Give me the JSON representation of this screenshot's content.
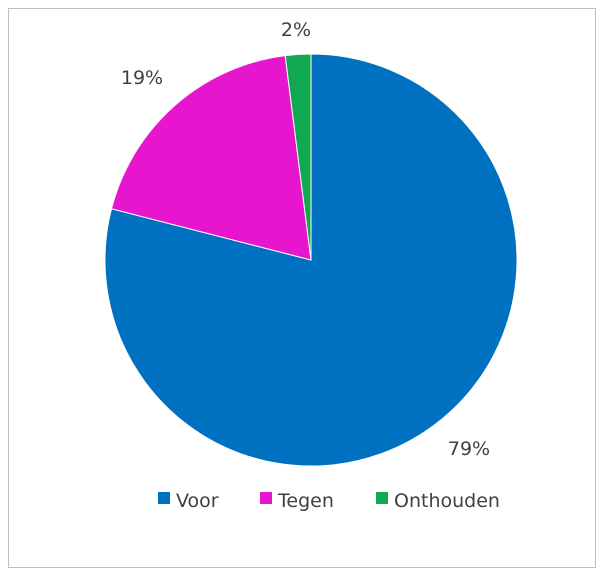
{
  "header_fragment": "",
  "chart_data": {
    "type": "pie",
    "title": "",
    "categories": [
      "Voor",
      "Tegen",
      "Onthouden"
    ],
    "values": [
      79,
      19,
      2
    ],
    "labels": [
      "79%",
      "19%",
      "2%"
    ],
    "colors": [
      "#0070C0",
      "#E815CF",
      "#10A850"
    ],
    "start_angle": "12 o'clock, clockwise",
    "legend": "bottom",
    "legend_labels": [
      "Voor",
      "Tegen",
      "Onthouden"
    ]
  }
}
